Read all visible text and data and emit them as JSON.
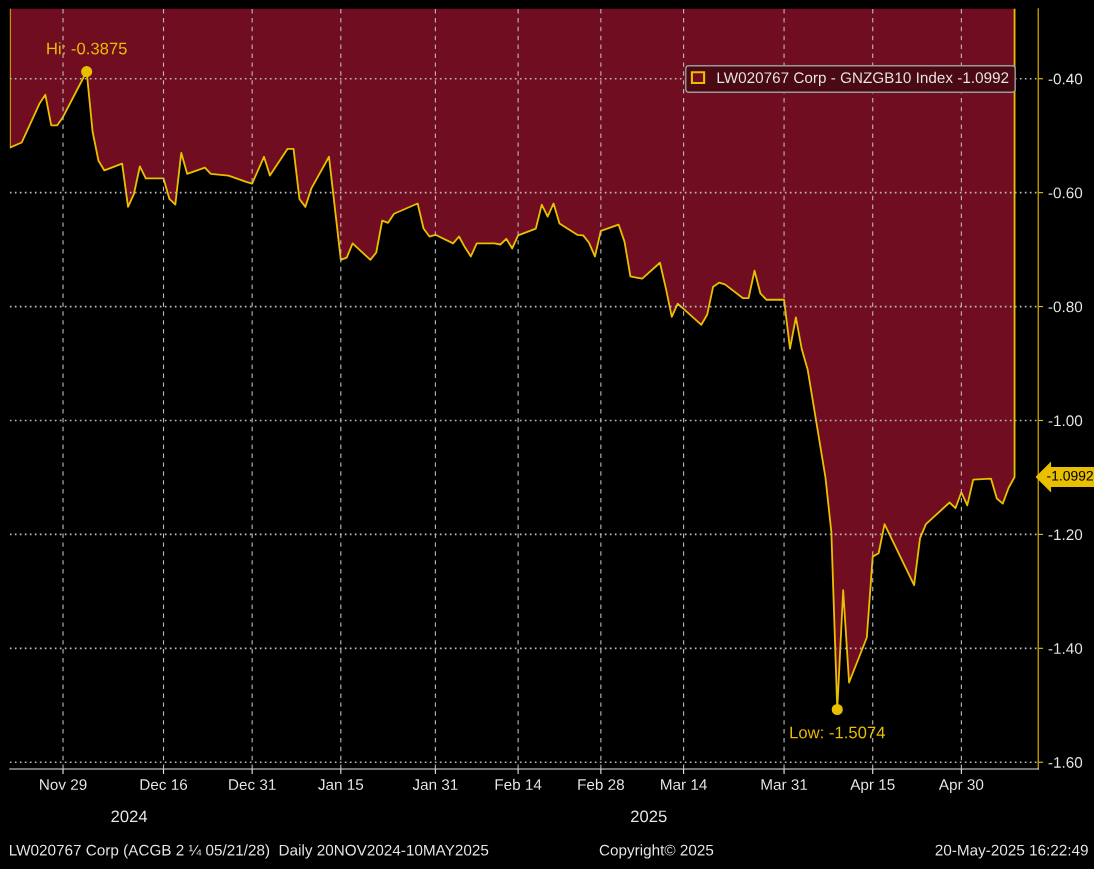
{
  "chart_data": {
    "type": "area",
    "x": [
      "2024-11-20",
      "2024-11-22",
      "2024-11-25",
      "2024-11-26",
      "2024-11-27",
      "2024-11-28",
      "2024-11-29",
      "2024-12-02",
      "2024-12-03",
      "2024-12-04",
      "2024-12-05",
      "2024-12-06",
      "2024-12-09",
      "2024-12-10",
      "2024-12-11",
      "2024-12-12",
      "2024-12-13",
      "2024-12-16",
      "2024-12-17",
      "2024-12-18",
      "2024-12-19",
      "2024-12-20",
      "2024-12-23",
      "2024-12-24",
      "2024-12-27",
      "2024-12-30",
      "2024-12-31",
      "2025-01-02",
      "2025-01-03",
      "2025-01-06",
      "2025-01-07",
      "2025-01-08",
      "2025-01-09",
      "2025-01-10",
      "2025-01-13",
      "2025-01-15",
      "2025-01-16",
      "2025-01-17",
      "2025-01-20",
      "2025-01-21",
      "2025-01-22",
      "2025-01-23",
      "2025-01-24",
      "2025-01-28",
      "2025-01-29",
      "2025-01-30",
      "2025-01-31",
      "2025-02-03",
      "2025-02-04",
      "2025-02-05",
      "2025-02-06",
      "2025-02-07",
      "2025-02-10",
      "2025-02-11",
      "2025-02-12",
      "2025-02-13",
      "2025-02-14",
      "2025-02-17",
      "2025-02-18",
      "2025-02-19",
      "2025-02-20",
      "2025-02-21",
      "2025-02-24",
      "2025-02-25",
      "2025-02-26",
      "2025-02-27",
      "2025-02-28",
      "2025-03-03",
      "2025-03-04",
      "2025-03-05",
      "2025-03-06",
      "2025-03-07",
      "2025-03-10",
      "2025-03-11",
      "2025-03-12",
      "2025-03-13",
      "2025-03-14",
      "2025-03-17",
      "2025-03-18",
      "2025-03-19",
      "2025-03-20",
      "2025-03-21",
      "2025-03-24",
      "2025-03-25",
      "2025-03-26",
      "2025-03-27",
      "2025-03-28",
      "2025-03-31",
      "2025-04-01",
      "2025-04-02",
      "2025-04-03",
      "2025-04-04",
      "2025-04-07",
      "2025-04-08",
      "2025-04-09",
      "2025-04-10",
      "2025-04-11",
      "2025-04-14",
      "2025-04-15",
      "2025-04-16",
      "2025-04-17",
      "2025-04-22",
      "2025-04-23",
      "2025-04-24",
      "2025-04-28",
      "2025-04-29",
      "2025-04-30",
      "2025-05-01",
      "2025-05-02",
      "2025-05-05",
      "2025-05-06",
      "2025-05-07",
      "2025-05-08",
      "2025-05-09"
    ],
    "series": [
      {
        "name": "LW020767 Corp - GNZGB10 Index -1.0992",
        "color": "#710d20",
        "values": [
          -0.521,
          -0.512,
          -0.444,
          -0.428,
          -0.482,
          -0.482,
          -0.467,
          -0.407,
          -0.3875,
          -0.493,
          -0.544,
          -0.561,
          -0.549,
          -0.625,
          -0.602,
          -0.554,
          -0.575,
          -0.575,
          -0.611,
          -0.621,
          -0.53,
          -0.567,
          -0.556,
          -0.567,
          -0.57,
          -0.581,
          -0.584,
          -0.537,
          -0.57,
          -0.523,
          -0.523,
          -0.611,
          -0.625,
          -0.593,
          -0.537,
          -0.718,
          -0.714,
          -0.689,
          -0.718,
          -0.705,
          -0.649,
          -0.653,
          -0.637,
          -0.619,
          -0.663,
          -0.677,
          -0.674,
          -0.689,
          -0.677,
          -0.696,
          -0.712,
          -0.689,
          -0.689,
          -0.691,
          -0.681,
          -0.698,
          -0.675,
          -0.663,
          -0.621,
          -0.642,
          -0.619,
          -0.654,
          -0.674,
          -0.675,
          -0.688,
          -0.712,
          -0.667,
          -0.656,
          -0.686,
          -0.747,
          -0.749,
          -0.751,
          -0.723,
          -0.768,
          -0.818,
          -0.795,
          -0.804,
          -0.832,
          -0.814,
          -0.765,
          -0.758,
          -0.761,
          -0.785,
          -0.785,
          -0.737,
          -0.777,
          -0.788,
          -0.788,
          -0.874,
          -0.819,
          -0.875,
          -0.911,
          -1.1,
          -1.196,
          -1.5074,
          -1.298,
          -1.46,
          -1.381,
          -1.239,
          -1.233,
          -1.182,
          -1.289,
          -1.207,
          -1.182,
          -1.144,
          -1.154,
          -1.126,
          -1.149,
          -1.104,
          -1.102,
          -1.137,
          -1.146,
          -1.118,
          -1.0992
        ]
      }
    ],
    "xlim": [
      "2024-11-20",
      "2025-05-13"
    ],
    "xticks": [
      {
        "value": "2024-11-29",
        "label": "Nov 29"
      },
      {
        "value": "2024-12-16",
        "label": "Dec 16"
      },
      {
        "value": "2024-12-31",
        "label": "Dec 31"
      },
      {
        "value": "2025-01-15",
        "label": "Jan 15"
      },
      {
        "value": "2025-01-31",
        "label": "Jan 31"
      },
      {
        "value": "2025-02-14",
        "label": "Feb 14"
      },
      {
        "value": "2025-02-28",
        "label": "Feb 28"
      },
      {
        "value": "2025-03-14",
        "label": "Mar 14"
      },
      {
        "value": "2025-03-31",
        "label": "Mar 31"
      },
      {
        "value": "2025-04-15",
        "label": "Apr 15"
      },
      {
        "value": "2025-04-30",
        "label": "Apr 30"
      }
    ],
    "ylim": [
      -1.612,
      -0.277
    ],
    "yticks": [
      {
        "value": -0.4,
        "label": "-0.40"
      },
      {
        "value": -0.6,
        "label": "-0.60"
      },
      {
        "value": -0.8,
        "label": "-0.80"
      },
      {
        "value": -1.0,
        "label": "-1.00"
      },
      {
        "value": -1.2,
        "label": "-1.20"
      },
      {
        "value": -1.4,
        "label": "-1.40"
      },
      {
        "value": -1.6,
        "label": "-1.60"
      }
    ],
    "grid": true,
    "legend": "top right",
    "annotations": [
      {
        "text": "Hi: -0.3875",
        "x": "2024-12-03",
        "y": -0.3875
      },
      {
        "text": "Low: -1.5074",
        "x": "2025-04-09",
        "y": -1.5074
      },
      {
        "text": "-1.0992",
        "x": "2025-05-09",
        "y": -1.0992
      },
      "2024",
      "2025",
      "LW020767 Corp (ACGB 2 ¼ 05/21/28)  Daily 20NOV2024-10MAY2025",
      "Copyright© 2025",
      "20-May-2025 16:22:49"
    ]
  }
}
